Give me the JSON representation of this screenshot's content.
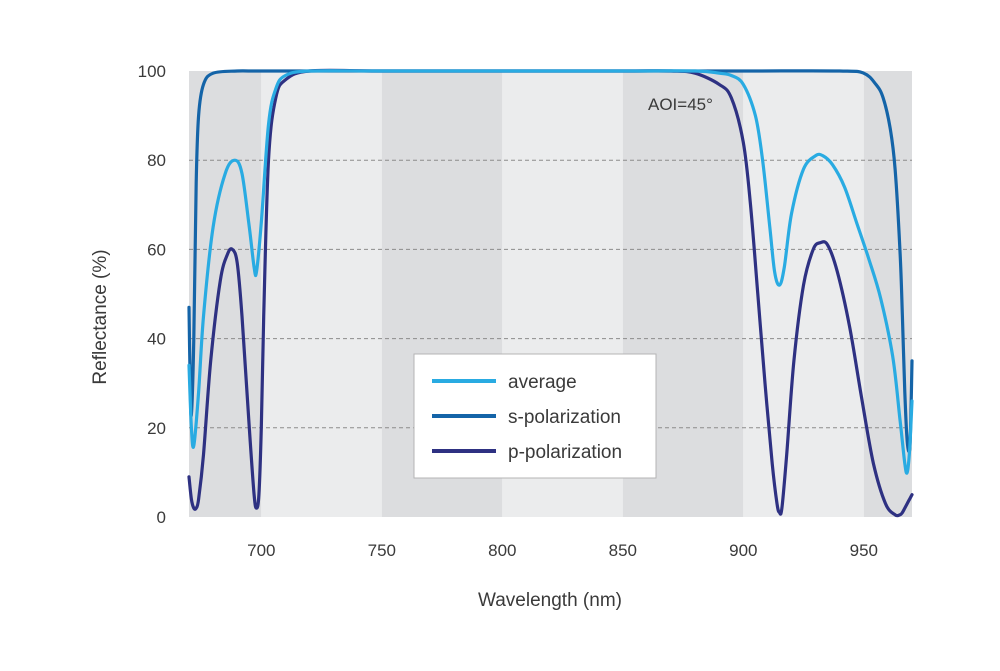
{
  "chart_data": {
    "type": "line",
    "xlabel": "Wavelength (nm)",
    "ylabel": "Reflectance (%)",
    "xlim": [
      670,
      970
    ],
    "ylim": [
      0,
      100
    ],
    "xticks": [
      700,
      750,
      800,
      850,
      900,
      950
    ],
    "yticks": [
      0,
      20,
      40,
      60,
      80,
      100
    ],
    "grid": "horizontal dashed",
    "annotation": "AOI=45°",
    "legend_position": "center-bottom",
    "colors": {
      "average": "#29abe2",
      "s-polarization": "#1464a8",
      "p-polarization": "#2e3182",
      "band_dark": "#dcdddf",
      "band_light": "#ebeced",
      "grid": "#8c8c8c"
    },
    "series": [
      {
        "name": "average",
        "x": [
          670,
          671,
          672,
          674,
          676,
          680,
          685,
          689,
          692,
          695,
          697,
          698,
          700,
          703,
          706,
          710,
          720,
          750,
          800,
          850,
          880,
          890,
          895,
          900,
          905,
          908,
          911,
          913,
          915,
          917,
          920,
          925,
          930,
          933,
          937,
          942,
          947,
          952,
          957,
          962,
          965,
          967,
          968,
          969,
          970
        ],
        "y": [
          34,
          20,
          16,
          28,
          45,
          65,
          77,
          80,
          77,
          65,
          56,
          55,
          66,
          88,
          96,
          99,
          100,
          100,
          100,
          100,
          100,
          99.5,
          99,
          97,
          90,
          80,
          65,
          55,
          52,
          56,
          68,
          78,
          81,
          81,
          79,
          74,
          66,
          58,
          49,
          36,
          22,
          12,
          10,
          15,
          26
        ]
      },
      {
        "name": "s-polarization",
        "x": [
          670,
          670.5,
          671,
          672,
          673,
          674,
          676,
          680,
          690,
          700,
          750,
          800,
          850,
          900,
          940,
          950,
          955,
          958,
          961,
          963,
          965,
          966,
          967,
          968,
          969,
          969.5,
          970
        ],
        "y": [
          47,
          30,
          23,
          40,
          75,
          90,
          97,
          99.5,
          100,
          100,
          100,
          100,
          100,
          100,
          100,
          99.5,
          97,
          94,
          87,
          78,
          60,
          45,
          28,
          17,
          15,
          22,
          35
        ]
      },
      {
        "name": "p-polarization",
        "x": [
          670,
          671,
          672,
          673,
          674,
          676,
          679,
          683,
          686,
          688,
          690,
          692,
          695,
          697,
          698,
          699,
          700,
          701,
          703,
          706,
          710,
          720,
          750,
          800,
          850,
          870,
          880,
          890,
          895,
          900,
          903,
          906,
          909,
          912,
          914,
          915,
          916,
          918,
          921,
          925,
          929,
          932,
          935,
          939,
          944,
          949,
          954,
          959,
          963,
          965,
          966,
          967,
          968,
          969,
          970
        ],
        "y": [
          9,
          4,
          2,
          2,
          4,
          14,
          35,
          53,
          59,
          60,
          57,
          45,
          20,
          5,
          2,
          5,
          20,
          45,
          80,
          94,
          98,
          100,
          100,
          100,
          100,
          100,
          99.5,
          97,
          94,
          84,
          70,
          50,
          30,
          12,
          3,
          1,
          2,
          14,
          35,
          52,
          60,
          61.5,
          61,
          55,
          43,
          27,
          12,
          3,
          0.5,
          0.5,
          1,
          2,
          3,
          4,
          5
        ]
      }
    ]
  }
}
